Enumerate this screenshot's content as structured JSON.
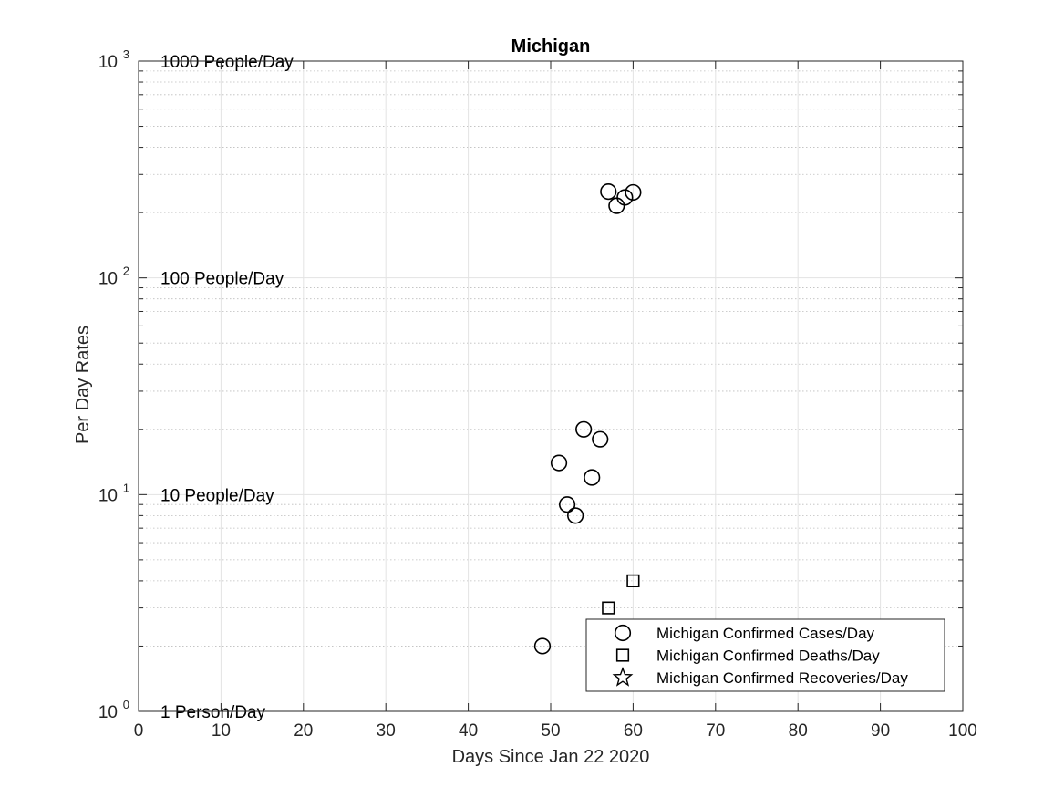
{
  "chart_data": {
    "type": "scatter",
    "title": "Michigan",
    "xlabel": "Days Since Jan 22 2020",
    "ylabel": "Per Day Rates",
    "xlim": [
      0,
      100
    ],
    "ylim": [
      1,
      1000
    ],
    "yscale": "log",
    "grid": true,
    "x_ticks": [
      0,
      10,
      20,
      30,
      40,
      50,
      60,
      70,
      80,
      90,
      100
    ],
    "y_ticks": [
      {
        "value": 1,
        "base": "10",
        "exp": "0"
      },
      {
        "value": 10,
        "base": "10",
        "exp": "1"
      },
      {
        "value": 100,
        "base": "10",
        "exp": "2"
      },
      {
        "value": 1000,
        "base": "10",
        "exp": "3"
      }
    ],
    "reference_labels": [
      {
        "value": 1000,
        "text": "1000 People/Day"
      },
      {
        "value": 100,
        "text": "100 People/Day"
      },
      {
        "value": 10,
        "text": "10 People/Day"
      },
      {
        "value": 1,
        "text": "1 Person/Day"
      }
    ],
    "legend_position": "bottom-right",
    "series": [
      {
        "name": "Michigan Confirmed Cases/Day",
        "marker": "circle",
        "points": [
          {
            "x": 49,
            "y": 2
          },
          {
            "x": 51,
            "y": 14
          },
          {
            "x": 52,
            "y": 9
          },
          {
            "x": 53,
            "y": 8
          },
          {
            "x": 54,
            "y": 20
          },
          {
            "x": 55,
            "y": 12
          },
          {
            "x": 56,
            "y": 18
          },
          {
            "x": 57,
            "y": 250
          },
          {
            "x": 58,
            "y": 215
          },
          {
            "x": 59,
            "y": 235
          },
          {
            "x": 60,
            "y": 248
          }
        ]
      },
      {
        "name": "Michigan Confirmed Deaths/Day",
        "marker": "square",
        "points": [
          {
            "x": 57,
            "y": 3
          },
          {
            "x": 60,
            "y": 4
          }
        ]
      },
      {
        "name": "Michigan Confirmed Recoveries/Day",
        "marker": "star",
        "points": []
      }
    ]
  }
}
